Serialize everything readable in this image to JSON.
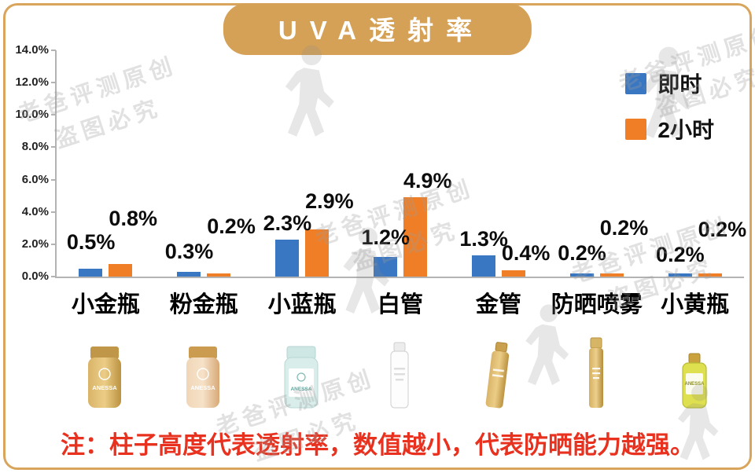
{
  "note": "注：柱子高度代表透射率，数值越小，代表防晒能力越强。",
  "watermark": {
    "line1": "老爸评测原创",
    "line2": "盗图必究"
  },
  "brand_label": "ANESSA",
  "chart_data": {
    "type": "bar",
    "title": "UVA透射率",
    "categories": [
      "小金瓶",
      "粉金瓶",
      "小蓝瓶",
      "白管",
      "金管",
      "防晒喷雾",
      "小黄瓶"
    ],
    "series": [
      {
        "name": "即时",
        "color": "#3a77c2",
        "values": [
          0.5,
          0.3,
          2.3,
          1.2,
          1.3,
          0.2,
          0.2
        ]
      },
      {
        "name": "2小时",
        "color": "#f07e26",
        "values": [
          0.8,
          0.2,
          2.9,
          4.9,
          0.4,
          0.2,
          0.2
        ]
      }
    ],
    "ylim": [
      0,
      14
    ],
    "yticks": [
      "14.0%",
      "12.0%",
      "10.0%",
      "8.0%",
      "6.0%",
      "4.0%",
      "2.0%",
      "0.0%"
    ],
    "value_suffix": "%",
    "legend_position": "top-right",
    "grid": false,
    "accent_color": "#d5a157",
    "note_color": "#e8321f"
  },
  "products": [
    {
      "category": "小金瓶",
      "style": "gold-bottle"
    },
    {
      "category": "粉金瓶",
      "style": "pink-gold-bottle"
    },
    {
      "category": "小蓝瓶",
      "style": "blue-bottle"
    },
    {
      "category": "白管",
      "style": "white-tube"
    },
    {
      "category": "金管",
      "style": "gold-tube"
    },
    {
      "category": "防晒喷雾",
      "style": "gold-spray"
    },
    {
      "category": "小黄瓶",
      "style": "yellow-bottle"
    }
  ]
}
